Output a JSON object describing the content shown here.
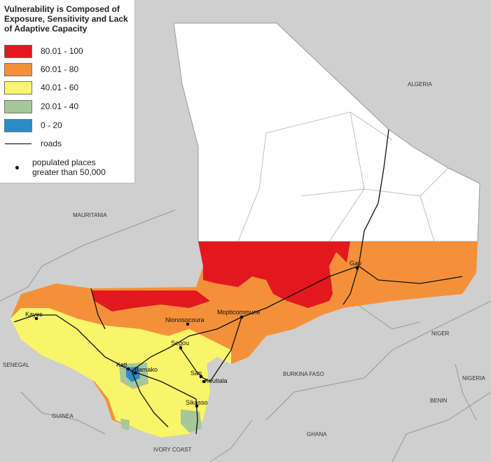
{
  "legend": {
    "title": "Vulnerability is Composed of Exposure, Sensitivity and Lack of Adaptive Capacity",
    "classes": [
      {
        "label": "80.01 - 100",
        "color": "#e3171e"
      },
      {
        "label": "60.01 - 80",
        "color": "#f5903a"
      },
      {
        "label": "40.01 - 60",
        "color": "#f8f56a"
      },
      {
        "label": "20.01 - 40",
        "color": "#a6c79a"
      },
      {
        "label": "0 - 20",
        "color": "#2a8cc6"
      }
    ],
    "roads_label": "roads",
    "populated_label_line1": "populated places",
    "populated_label_line2": "greater than 50,000"
  },
  "countries": {
    "algeria": "ALGERIA",
    "mauritania": "MAURITANIA",
    "senegal": "SENEGAL",
    "guinea": "GUINEA",
    "ivory_coast": "IVORY COAST",
    "burkina_faso": "BURKINA FASO",
    "ghana": "GHANA",
    "niger": "NIGER",
    "nigeria": "NIGERIA",
    "benin": "BENIN"
  },
  "cities": {
    "kayes": "Kayes",
    "nionosocoura": "Nionosocoura",
    "mopticommune": "Mopticommune",
    "gao": "Gao",
    "segou": "Segou",
    "kati": "Kati",
    "bamako": "Bamako",
    "san": "San",
    "koutiala": "Koutiala",
    "sikasso": "Sikasso"
  }
}
